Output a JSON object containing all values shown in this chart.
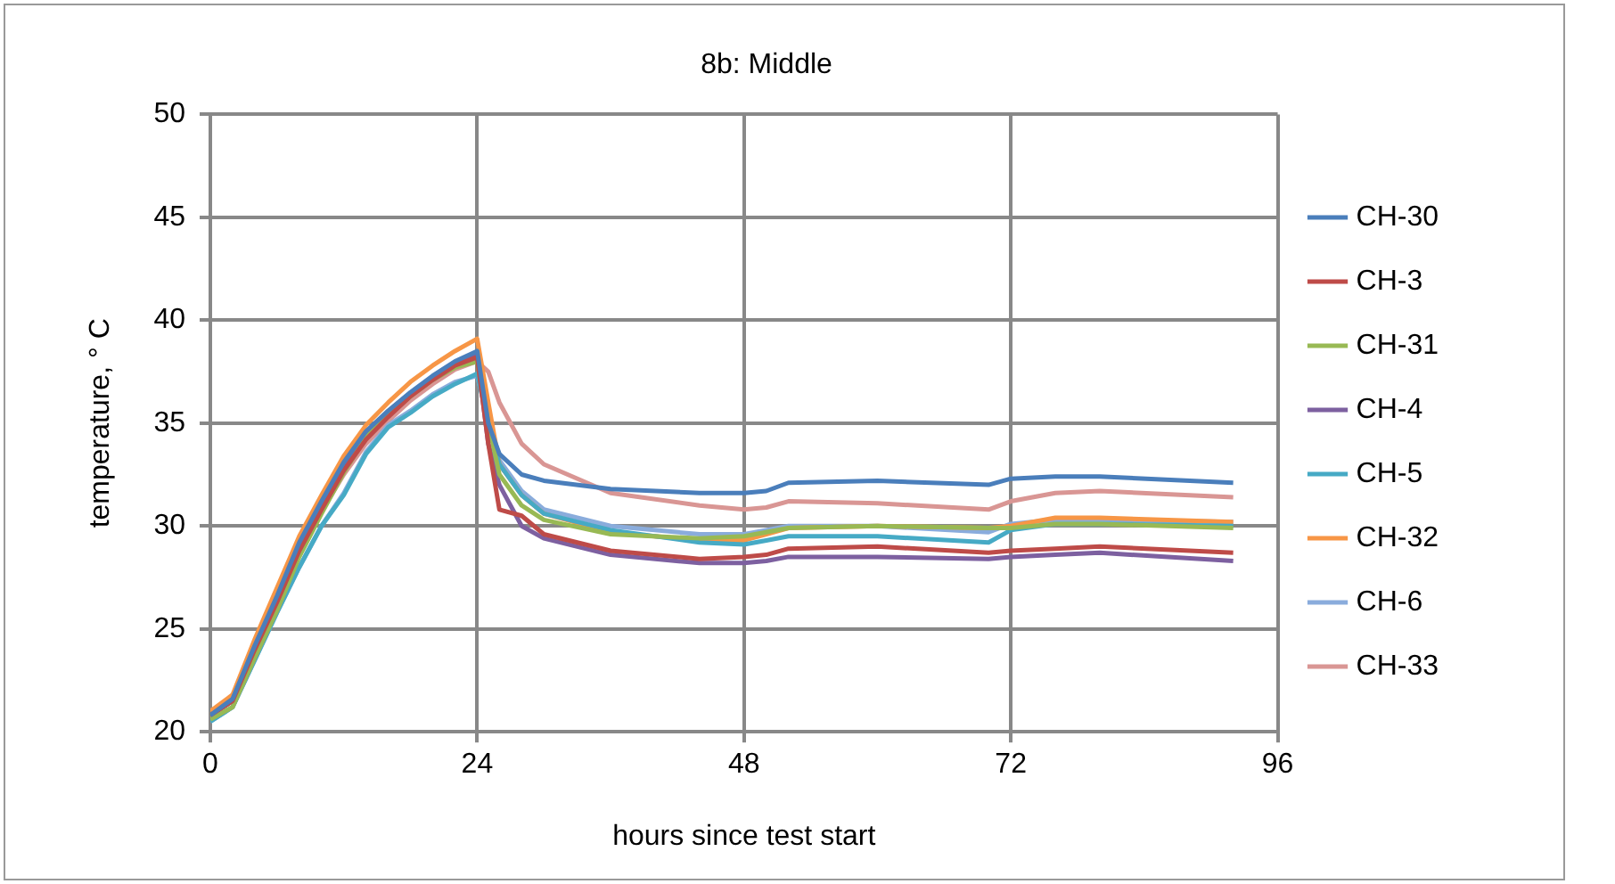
{
  "chart_data": {
    "type": "line",
    "title": "8b: Middle",
    "xlabel": "hours since test start",
    "ylabel": "temperature, ° C",
    "x": [
      0,
      2,
      4,
      6,
      8,
      10,
      12,
      14,
      16,
      18,
      20,
      22,
      24,
      25,
      26,
      28,
      30,
      36,
      44,
      48,
      50,
      52,
      60,
      70,
      72,
      76,
      80,
      92
    ],
    "xlim": [
      0,
      96
    ],
    "xticks": [
      0,
      24,
      48,
      72,
      96
    ],
    "ylim": [
      20,
      50
    ],
    "yticks": [
      20,
      25,
      30,
      35,
      40,
      45,
      50
    ],
    "grid": true,
    "legend": "right",
    "marker": "none",
    "line_style": "solid",
    "series": [
      {
        "name": "CH-30",
        "color": "#4a7ebb",
        "values": [
          20.8,
          21.6,
          24.2,
          26.6,
          29.2,
          31.2,
          33.1,
          34.6,
          35.6,
          36.5,
          37.3,
          38,
          38.5,
          35,
          33.5,
          32.5,
          32.2,
          31.8,
          31.6,
          31.6,
          31.7,
          32.1,
          32.2,
          32,
          32.3,
          32.4,
          32.4,
          32.1
        ]
      },
      {
        "name": "CH-3",
        "color": "#be4b48",
        "values": [
          20.8,
          21.5,
          24,
          26.3,
          28.8,
          30.8,
          32.7,
          34.2,
          35.3,
          36.3,
          37.1,
          37.8,
          38.2,
          34,
          30.8,
          30.5,
          29.6,
          28.8,
          28.4,
          28.5,
          28.6,
          28.9,
          29,
          28.7,
          28.8,
          28.9,
          29,
          28.7
        ]
      },
      {
        "name": "CH-31",
        "color": "#98b954",
        "values": [
          20.6,
          21.2,
          23.6,
          25.9,
          28.5,
          30.6,
          32.6,
          34.3,
          35.4,
          36.3,
          37.1,
          37.7,
          38,
          35,
          32.5,
          31,
          30.3,
          29.6,
          29.4,
          29.5,
          29.7,
          29.9,
          30,
          29.9,
          29.9,
          30.1,
          30.1,
          29.9
        ]
      },
      {
        "name": "CH-4",
        "color": "#7d60a0",
        "values": [
          20.8,
          21.5,
          24,
          26.4,
          29,
          31,
          32.9,
          34.4,
          35.5,
          36.4,
          37.2,
          37.9,
          38.3,
          34,
          32,
          30,
          29.4,
          28.6,
          28.2,
          28.2,
          28.3,
          28.5,
          28.5,
          28.4,
          28.5,
          28.6,
          28.7,
          28.3
        ]
      },
      {
        "name": "CH-5",
        "color": "#46aac5",
        "values": [
          20.5,
          21.2,
          23.5,
          25.8,
          28,
          30,
          31.5,
          33.5,
          34.8,
          35.5,
          36.3,
          36.9,
          37.4,
          35,
          33,
          31.5,
          30.6,
          29.8,
          29.2,
          29.1,
          29.3,
          29.5,
          29.5,
          29.2,
          29.8,
          30.1,
          30.1,
          30
        ]
      },
      {
        "name": "CH-32",
        "color": "#f79646",
        "values": [
          21,
          21.8,
          24.5,
          27,
          29.5,
          31.5,
          33.4,
          34.9,
          36,
          37,
          37.8,
          38.5,
          39.1,
          36,
          33,
          31.5,
          30.6,
          29.7,
          29.3,
          29.3,
          29.6,
          29.9,
          30,
          29.9,
          30,
          30.4,
          30.4,
          30.2
        ]
      },
      {
        "name": "CH-6",
        "color": "#8aacdc",
        "values": [
          20.5,
          21.2,
          23.5,
          25.8,
          28,
          30,
          31.6,
          33.6,
          34.9,
          35.6,
          36.4,
          37,
          37.3,
          35.2,
          33.2,
          31.7,
          30.8,
          30,
          29.6,
          29.6,
          29.8,
          30,
          30,
          29.7,
          30.1,
          30.3,
          30.3,
          30.2
        ]
      },
      {
        "name": "CH-33",
        "color": "#d99694",
        "values": [
          20.8,
          21.5,
          24,
          26.3,
          28.8,
          30.7,
          32.5,
          34,
          35.1,
          36.1,
          36.9,
          37.6,
          38,
          37.5,
          36,
          34,
          33,
          31.6,
          31,
          30.8,
          30.9,
          31.2,
          31.1,
          30.8,
          31.2,
          31.6,
          31.7,
          31.4
        ]
      }
    ]
  }
}
